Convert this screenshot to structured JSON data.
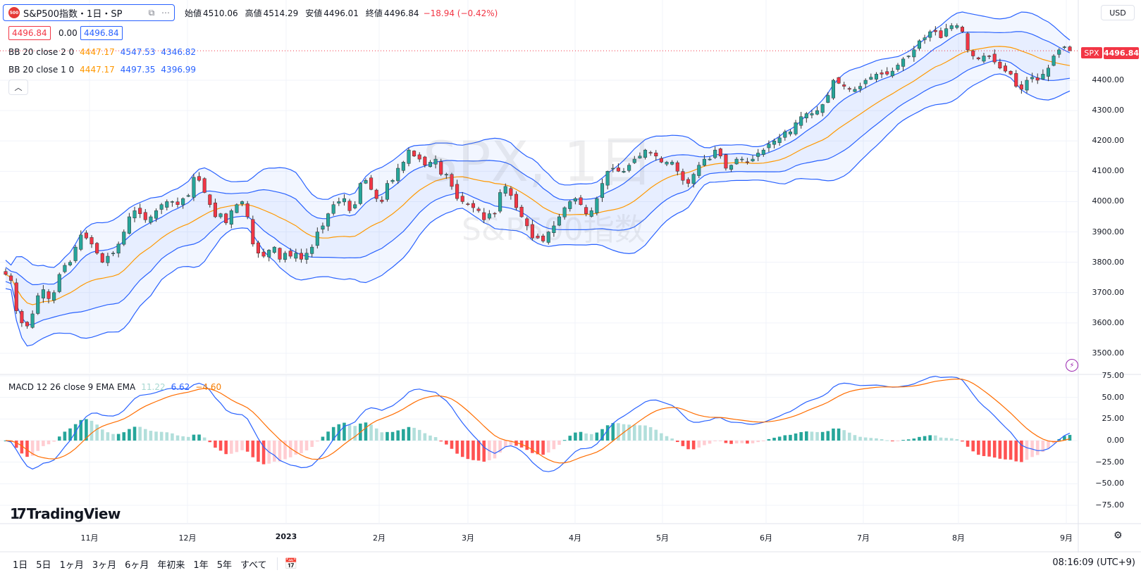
{
  "header": {
    "logo_text": "500",
    "symbol_title": "S&P500指数・1日・SP",
    "compare_icon": "compare-icon",
    "more_icon": "more-dots-icon"
  },
  "ohlc": {
    "open_label": "始値",
    "open": "4510.06",
    "high_label": "高値",
    "high": "4514.29",
    "low_label": "安値",
    "low": "4496.01",
    "close_label": "終値",
    "close": "4496.84",
    "change": "−18.94 (−0.42%)"
  },
  "quote": {
    "bid": "4496.84",
    "spread": "0.00",
    "ask": "4496.84"
  },
  "indicators": {
    "bb2": {
      "name": "BB 20 close 2 0",
      "basis": "4447.17",
      "upper": "4547.53",
      "lower": "4346.82"
    },
    "bb1": {
      "name": "BB 20 close 1 0",
      "basis": "4447.17",
      "upper": "4497.35",
      "lower": "4396.99"
    },
    "macd": {
      "name": "MACD 12 26 close 9 EMA EMA",
      "hist": "11.22",
      "macd": "6.62",
      "signal": "−4.60"
    }
  },
  "watermark": {
    "ticker": "SPX, 1日",
    "name": "S&P500指数"
  },
  "price_axis": {
    "currency": "USD",
    "labels": [
      "4400.00",
      "4300.00",
      "4200.00",
      "4100.00",
      "4000.00",
      "3900.00",
      "3800.00",
      "3700.00",
      "3600.00",
      "3500.00"
    ],
    "symbol_tag": "SPX",
    "last_price": "4496.84"
  },
  "macd_axis": {
    "labels": [
      "75.00",
      "50.00",
      "25.00",
      "0.00",
      "−25.00",
      "−50.00",
      "−75.00"
    ]
  },
  "time_axis": {
    "labels": [
      "11月",
      "12月",
      "2023",
      "2月",
      "3月",
      "4月",
      "5月",
      "6月",
      "7月",
      "8月",
      "9月"
    ]
  },
  "brand": {
    "name": "TradingView"
  },
  "range_buttons": [
    "1日",
    "5日",
    "1ヶ月",
    "3ヶ月",
    "6ヶ月",
    "年初来",
    "1年",
    "5年",
    "すべて"
  ],
  "clock": "08:16:09 (UTC+9)",
  "colors": {
    "up": "#26a69a",
    "down": "#f23645",
    "bb_band": "#2962ff",
    "bb_basis": "#ff9800",
    "macd": "#2962ff",
    "signal": "#ff6d00"
  },
  "chart_data": {
    "type": "candlestick",
    "title": "S&P500指数・1日・SP",
    "ylim": [
      3470,
      4570
    ],
    "closes": [
      3760,
      3740,
      3640,
      3600,
      3590,
      3630,
      3690,
      3710,
      3680,
      3700,
      3760,
      3790,
      3800,
      3850,
      3890,
      3880,
      3860,
      3830,
      3800,
      3820,
      3830,
      3860,
      3900,
      3950,
      3970,
      3960,
      3940,
      3950,
      3970,
      3990,
      4000,
      4000,
      3990,
      4010,
      4020,
      4080,
      4070,
      4030,
      3990,
      3950,
      3960,
      3930,
      3970,
      3990,
      4000,
      3950,
      3860,
      3830,
      3820,
      3840,
      3850,
      3810,
      3830,
      3820,
      3830,
      3810,
      3830,
      3850,
      3900,
      3920,
      3960,
      3990,
      4000,
      4010,
      3970,
      3990,
      4060,
      4070,
      4040,
      4010,
      4000,
      4060,
      4070,
      4110,
      4130,
      4170,
      4150,
      4140,
      4120,
      4130,
      4140,
      4090,
      4090,
      4050,
      4010,
      4000,
      3990,
      3980,
      3970,
      3940,
      3960,
      3960,
      4030,
      4050,
      4020,
      3980,
      3950,
      3920,
      3880,
      3880,
      3870,
      3900,
      3920,
      3950,
      3980,
      4000,
      4010,
      3990,
      3960,
      3970,
      4010,
      4060,
      4100,
      4110,
      4100,
      4100,
      4120,
      4140,
      4150,
      4170,
      4160,
      4150,
      4130,
      4130,
      4130,
      4100,
      4070,
      4060,
      4090,
      4120,
      4140,
      4140,
      4170,
      4150,
      4110,
      4120,
      4140,
      4140,
      4130,
      4140,
      4160,
      4170,
      4190,
      4200,
      4210,
      4230,
      4230,
      4260,
      4280,
      4290,
      4290,
      4300,
      4320,
      4350,
      4400,
      4390,
      4380,
      4370,
      4370,
      4380,
      4400,
      4410,
      4420,
      4420,
      4420,
      4430,
      4450,
      4470,
      4480,
      4500,
      4530,
      4540,
      4560,
      4560,
      4540,
      4570,
      4580,
      4580,
      4560,
      4500,
      4480,
      4470,
      4480,
      4480,
      4460,
      4440,
      4430,
      4420,
      4380,
      4370,
      4400,
      4410,
      4400,
      4420,
      4440,
      4480,
      4500,
      4510,
      4497
    ]
  }
}
